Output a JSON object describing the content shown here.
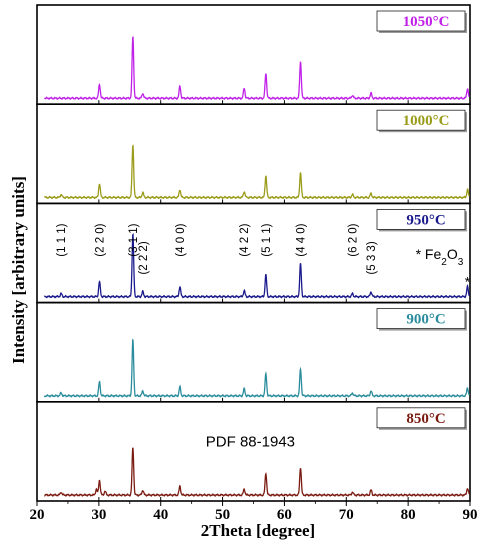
{
  "chart_data": {
    "type": "line",
    "xlabel": "2Theta [degree]",
    "ylabel": "Intensity [arbitrary units]",
    "xlim": [
      20,
      90
    ],
    "xticks": [
      20,
      30,
      40,
      50,
      60,
      70,
      80,
      90
    ],
    "grid": false,
    "panels": [
      {
        "label": "1050°C",
        "color": "#c020e8",
        "peaks": [
          [
            30.1,
            0.14
          ],
          [
            35.5,
            0.62
          ],
          [
            37.1,
            0.05
          ],
          [
            43.1,
            0.12
          ],
          [
            53.5,
            0.1
          ],
          [
            57.0,
            0.25
          ],
          [
            62.6,
            0.37
          ],
          [
            71.0,
            0.03
          ],
          [
            74.0,
            0.05
          ],
          [
            89.6,
            0.1
          ]
        ]
      },
      {
        "label": "1000°C",
        "color": "#9b9b1a",
        "peaks": [
          [
            23.9,
            0.03
          ],
          [
            30.1,
            0.14
          ],
          [
            35.5,
            0.53
          ],
          [
            37.1,
            0.05
          ],
          [
            43.1,
            0.08
          ],
          [
            53.5,
            0.06
          ],
          [
            57.0,
            0.22
          ],
          [
            62.6,
            0.25
          ],
          [
            71.0,
            0.03
          ],
          [
            74.0,
            0.04
          ],
          [
            89.6,
            0.08
          ]
        ]
      },
      {
        "label": "950°C",
        "color": "#1a1a8c",
        "annotation": "* Fe2O3",
        "peaks": [
          [
            23.9,
            0.03
          ],
          [
            30.1,
            0.15
          ],
          [
            35.5,
            0.63
          ],
          [
            37.1,
            0.05
          ],
          [
            43.1,
            0.1
          ],
          [
            53.5,
            0.06
          ],
          [
            57.0,
            0.22
          ],
          [
            62.6,
            0.33
          ],
          [
            71.0,
            0.03
          ],
          [
            74.0,
            0.05
          ],
          [
            89.6,
            0.1
          ]
        ],
        "hkl": [
          {
            "label": "(1 1 1)",
            "x": 23.9
          },
          {
            "label": "(2 2 0)",
            "x": 30.1
          },
          {
            "label": "(3 1 1)",
            "x": 35.5
          },
          {
            "label": "(2 2 2)",
            "x": 37.1
          },
          {
            "label": "(4 0 0)",
            "x": 43.1
          },
          {
            "label": "(4 2 2)",
            "x": 53.5
          },
          {
            "label": "(5 1 1)",
            "x": 57.0
          },
          {
            "label": "(4 4 0)",
            "x": 62.6
          },
          {
            "label": "(6 2 0)",
            "x": 71.0
          },
          {
            "label": "(5 3 3)",
            "x": 74.0
          },
          {
            "label": "*",
            "x": 89.6
          }
        ]
      },
      {
        "label": "900°C",
        "color": "#2a8c9c",
        "peaks": [
          [
            23.9,
            0.03
          ],
          [
            30.1,
            0.14
          ],
          [
            35.5,
            0.56
          ],
          [
            37.1,
            0.05
          ],
          [
            43.1,
            0.09
          ],
          [
            53.5,
            0.07
          ],
          [
            57.0,
            0.22
          ],
          [
            62.6,
            0.27
          ],
          [
            71.0,
            0.03
          ],
          [
            74.0,
            0.05
          ],
          [
            89.6,
            0.08
          ]
        ]
      },
      {
        "label": "850°C",
        "color": "#7a1a10",
        "annotation": "PDF 88-1943",
        "peaks": [
          [
            23.9,
            0.03
          ],
          [
            29.6,
            0.06
          ],
          [
            30.1,
            0.15
          ],
          [
            31.0,
            0.04
          ],
          [
            35.5,
            0.48
          ],
          [
            37.1,
            0.05
          ],
          [
            43.1,
            0.09
          ],
          [
            53.5,
            0.06
          ],
          [
            57.0,
            0.22
          ],
          [
            62.6,
            0.28
          ],
          [
            71.0,
            0.03
          ],
          [
            74.0,
            0.05
          ],
          [
            89.6,
            0.07
          ]
        ]
      }
    ]
  }
}
